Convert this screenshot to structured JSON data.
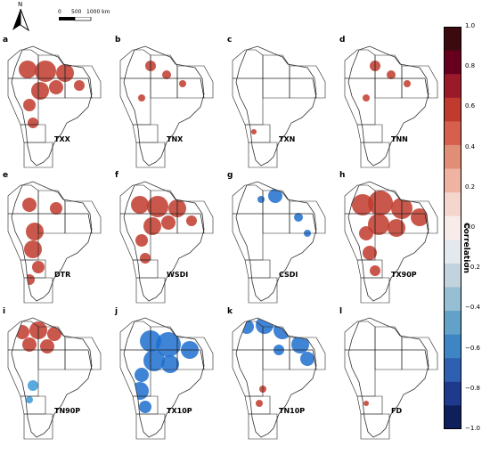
{
  "panels": [
    {
      "letter": "a",
      "label": "TXX",
      "pattern": "red-mid"
    },
    {
      "letter": "b",
      "label": "TNX",
      "pattern": "red-sparse"
    },
    {
      "letter": "c",
      "label": "TXN",
      "pattern": "blank"
    },
    {
      "letter": "d",
      "label": "TNN",
      "pattern": "red-sparse"
    },
    {
      "letter": "e",
      "label": "DTR",
      "pattern": "red-south"
    },
    {
      "letter": "f",
      "label": "WSDI",
      "pattern": "red-mid"
    },
    {
      "letter": "g",
      "label": "CSDI",
      "pattern": "blue-sparse"
    },
    {
      "letter": "h",
      "label": "TX90P",
      "pattern": "red-dense"
    },
    {
      "letter": "i",
      "label": "TN90P",
      "pattern": "red-north"
    },
    {
      "letter": "j",
      "label": "TX10P",
      "pattern": "blue-dense"
    },
    {
      "letter": "k",
      "label": "TN10P",
      "pattern": "blue-north"
    },
    {
      "letter": "l",
      "label": "FD",
      "pattern": "blank"
    }
  ],
  "scale": {
    "ticks": [
      "0",
      "500",
      "1000 km"
    ]
  },
  "compass": {
    "label": "N"
  },
  "colorbar": {
    "title": "Correlation",
    "ticks": [
      "1.0",
      "0.8",
      "0.6",
      "0.4",
      "0.2",
      "0.0",
      "−0.2",
      "−0.4",
      "−0.6",
      "−0.8",
      "−1.0"
    ],
    "colors": [
      "#3b0a0f",
      "#67001f",
      "#9b1a2a",
      "#c03a2e",
      "#d6604d",
      "#e08e76",
      "#f0b3a1",
      "#f5d6cd",
      "#f7ecea",
      "#e4e9ee",
      "#c2d3de",
      "#96bfd4",
      "#62a2c9",
      "#3d85c3",
      "#2f5fb0",
      "#1f3a8c",
      "#0f1f5c"
    ],
    "range": [
      -1.0,
      1.0
    ]
  },
  "colors": {
    "positive": "#c0392b",
    "positive_light": "#e07050",
    "brown": "#a0522d",
    "negative": "#1e6fcf",
    "negative_light": "#3a9ad9"
  }
}
